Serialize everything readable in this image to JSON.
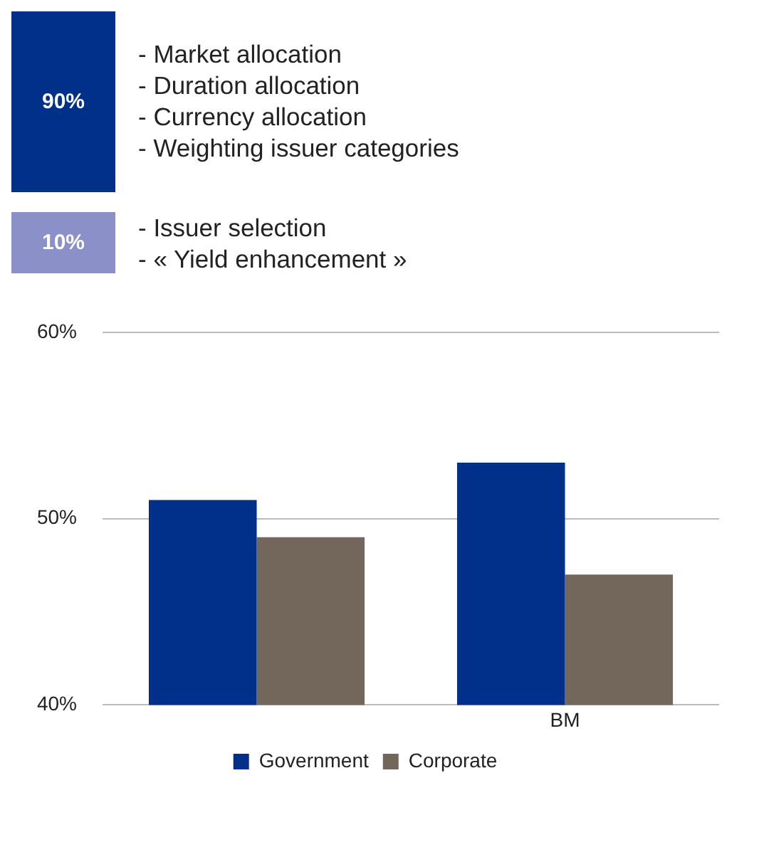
{
  "chart_data": [
    {
      "type": "other",
      "values": [
        90,
        10
      ],
      "value_labels": [
        "90%",
        "10%"
      ],
      "colors": [
        "#00308a",
        "#8c90c8"
      ],
      "categories": [
        "- Market allocation\n- Duration allocation\n- Currency allocation\n- Weighting issuer categories",
        "- Issuer selection\n- « Yield enhancement »"
      ]
    },
    {
      "type": "bar",
      "categories": [
        null,
        "BM"
      ],
      "series": [
        {
          "name": "Government",
          "color": "#00308a",
          "values": [
            51,
            53
          ]
        },
        {
          "name": "Corporate",
          "color": "#73665b",
          "values": [
            49,
            47
          ]
        }
      ],
      "ylim": [
        40,
        60
      ],
      "yticks": [
        {
          "value": 40,
          "label": "40%"
        },
        {
          "value": 50,
          "label": "50%"
        },
        {
          "value": 60,
          "label": "60%"
        }
      ],
      "grid": "y",
      "legend": "bottom"
    }
  ]
}
